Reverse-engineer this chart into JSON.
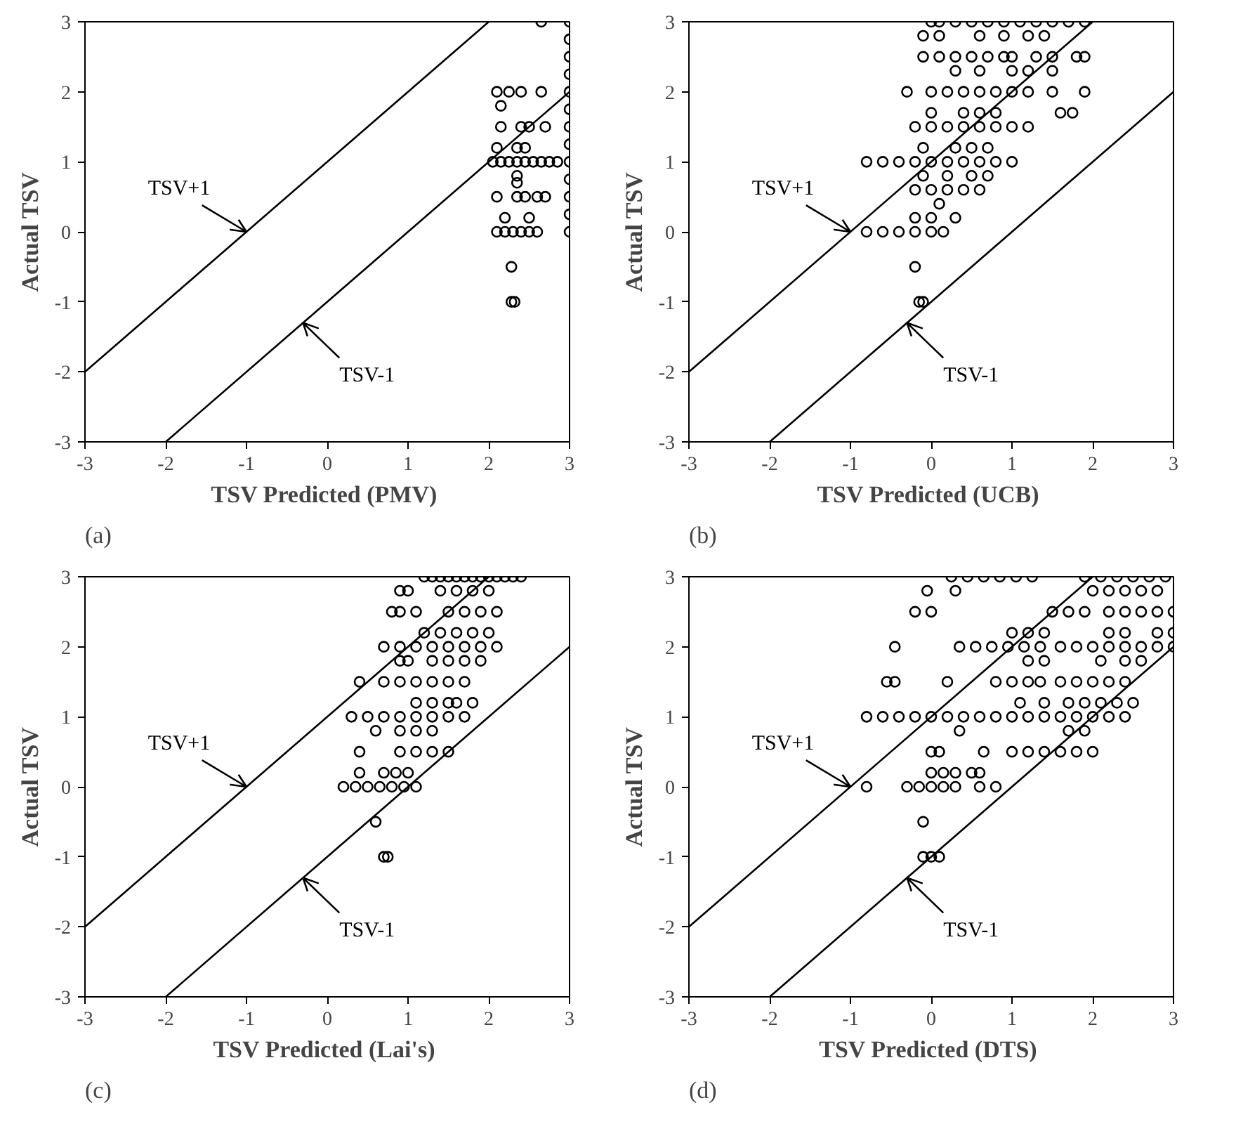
{
  "chart_data": [
    {
      "type": "scatter",
      "xlabel": "TSV  Predicted (PMV)",
      "ylabel": "Actual TSV",
      "xlim": [
        -3,
        3
      ],
      "ylim": [
        -3,
        3
      ],
      "xticks": [
        -3,
        -2,
        -1,
        0,
        1,
        2,
        3
      ],
      "yticks": [
        -3,
        -2,
        -1,
        0,
        1,
        2,
        3
      ],
      "grid": false,
      "annotations": [
        "(a)"
      ],
      "series": [
        {
          "marker": "circle",
          "color": "#000000",
          "x": [
            3.0,
            2.65,
            3,
            3,
            3,
            3,
            3,
            3,
            3,
            3,
            3,
            3,
            3,
            3,
            2.1,
            2.25,
            2.4,
            2.65,
            2.15,
            2.15,
            2.4,
            2.5,
            2.7,
            2.1,
            2.35,
            2.45,
            2.05,
            2.15,
            2.25,
            2.35,
            2.45,
            2.55,
            2.65,
            2.75,
            2.85,
            2.35,
            2.35,
            2.1,
            2.35,
            2.45,
            2.6,
            2.7,
            2.2,
            2.5,
            2.1,
            2.2,
            2.3,
            2.4,
            2.5,
            2.6,
            2.28,
            2.28,
            2.32
          ],
          "values": [
            3,
            3,
            0,
            0.25,
            0.5,
            0.75,
            1,
            1.25,
            1.5,
            1.75,
            2,
            2.25,
            2.5,
            2.75,
            2,
            2,
            2,
            2,
            1.8,
            1.5,
            1.5,
            1.5,
            1.5,
            1.2,
            1.2,
            1.2,
            1,
            1,
            1,
            1,
            1,
            1,
            1,
            1,
            1,
            0.8,
            0.7,
            0.5,
            0.5,
            0.5,
            0.5,
            0.5,
            0.2,
            0.2,
            0,
            0,
            0,
            0,
            0,
            0,
            -0.5,
            -1,
            -1
          ]
        },
        {
          "type": "line",
          "name": "TSV+1",
          "color": "#000000",
          "x": [
            -3,
            2
          ],
          "values": [
            -2,
            3
          ]
        },
        {
          "type": "line",
          "name": "TSV-1",
          "color": "#000000",
          "x": [
            -2,
            3
          ],
          "values": [
            -3,
            2
          ]
        }
      ]
    },
    {
      "type": "scatter",
      "xlabel": "TSV  Predicted (UCB)",
      "ylabel": "Actual TSV",
      "xlim": [
        -3,
        3
      ],
      "ylim": [
        -3,
        3
      ],
      "xticks": [
        -3,
        -2,
        -1,
        0,
        1,
        2,
        3
      ],
      "yticks": [
        -3,
        -2,
        -1,
        0,
        1,
        2,
        3
      ],
      "grid": false,
      "annotations": [
        "(b)"
      ],
      "series": [
        {
          "marker": "circle",
          "color": "#000000",
          "x": [
            0.0,
            0.1,
            0.3,
            0.5,
            0.7,
            0.9,
            1.1,
            1.3,
            1.5,
            1.7,
            1.9,
            -0.1,
            0.1,
            0.6,
            0.9,
            1.2,
            1.4,
            -0.1,
            0.1,
            0.3,
            0.5,
            0.7,
            0.9,
            1.0,
            1.3,
            1.5,
            1.8,
            1.9,
            0.3,
            0.6,
            1.0,
            1.2,
            1.5,
            -0.3,
            0.0,
            0.2,
            0.4,
            0.6,
            0.8,
            1.0,
            1.2,
            1.5,
            1.9,
            0.0,
            0.4,
            0.6,
            0.8,
            1.6,
            1.75,
            -0.2,
            0.0,
            0.2,
            0.4,
            0.6,
            0.8,
            1.0,
            1.2,
            -0.1,
            0.3,
            0.5,
            0.7,
            -0.8,
            -0.6,
            -0.4,
            -0.2,
            0.0,
            0.2,
            0.4,
            0.6,
            0.8,
            1.0,
            -0.1,
            0.2,
            0.5,
            0.7,
            -0.2,
            0.0,
            0.2,
            0.4,
            0.6,
            0.1,
            -0.2,
            0.0,
            0.3,
            -0.8,
            -0.6,
            -0.4,
            -0.2,
            0.0,
            0.15,
            -0.2,
            -0.15,
            -0.1
          ],
          "values": [
            3,
            3,
            3,
            3,
            3,
            3,
            3,
            3,
            3,
            3,
            3,
            2.8,
            2.8,
            2.8,
            2.8,
            2.8,
            2.8,
            2.5,
            2.5,
            2.5,
            2.5,
            2.5,
            2.5,
            2.5,
            2.5,
            2.5,
            2.5,
            2.5,
            2.3,
            2.3,
            2.3,
            2.3,
            2.3,
            2,
            2,
            2,
            2,
            2,
            2,
            2,
            2,
            2,
            2,
            1.7,
            1.7,
            1.7,
            1.7,
            1.7,
            1.7,
            1.5,
            1.5,
            1.5,
            1.5,
            1.5,
            1.5,
            1.5,
            1.5,
            1.2,
            1.2,
            1.2,
            1.2,
            1,
            1,
            1,
            1,
            1,
            1,
            1,
            1,
            1,
            1,
            0.8,
            0.8,
            0.8,
            0.8,
            0.6,
            0.6,
            0.6,
            0.6,
            0.6,
            0.4,
            0.2,
            0.2,
            0.2,
            0,
            0,
            0,
            0,
            0,
            0,
            -0.5,
            -1,
            -1
          ]
        },
        {
          "type": "line",
          "name": "TSV+1",
          "color": "#000000",
          "x": [
            -3,
            2
          ],
          "values": [
            -2,
            3
          ]
        },
        {
          "type": "line",
          "name": "TSV-1",
          "color": "#000000",
          "x": [
            -2,
            3
          ],
          "values": [
            -3,
            2
          ]
        }
      ]
    },
    {
      "type": "scatter",
      "xlabel": "TSV  Predicted (Lai's)",
      "ylabel": "Actual TSV",
      "xlim": [
        -3,
        3
      ],
      "ylim": [
        -3,
        3
      ],
      "xticks": [
        -3,
        -2,
        -1,
        0,
        1,
        2,
        3
      ],
      "yticks": [
        -3,
        -2,
        -1,
        0,
        1,
        2,
        3
      ],
      "grid": false,
      "annotations": [
        "(c)"
      ],
      "series": [
        {
          "marker": "circle",
          "color": "#000000",
          "x": [
            1.2,
            1.3,
            1.4,
            1.5,
            1.6,
            1.7,
            1.8,
            1.9,
            2.0,
            2.1,
            2.2,
            2.3,
            2.4,
            0.9,
            1.0,
            1.4,
            1.6,
            1.8,
            2.0,
            0.8,
            0.9,
            1.1,
            1.5,
            1.7,
            1.9,
            2.1,
            1.2,
            1.4,
            1.6,
            1.8,
            2.0,
            0.7,
            0.9,
            1.1,
            1.3,
            1.5,
            1.7,
            1.9,
            2.1,
            0.9,
            1.0,
            1.3,
            1.5,
            1.7,
            1.9,
            0.4,
            0.7,
            0.9,
            1.1,
            1.3,
            1.5,
            1.7,
            1.1,
            1.3,
            1.5,
            1.6,
            1.8,
            0.3,
            0.5,
            0.7,
            0.9,
            1.1,
            1.3,
            1.5,
            1.7,
            0.6,
            0.9,
            1.1,
            1.3,
            0.4,
            0.9,
            1.1,
            1.3,
            1.5,
            0.4,
            0.7,
            0.85,
            1.0,
            0.2,
            0.35,
            0.5,
            0.65,
            0.8,
            0.95,
            1.1,
            0.6,
            0.7,
            0.75
          ],
          "values": [
            3,
            3,
            3,
            3,
            3,
            3,
            3,
            3,
            3,
            3,
            3,
            3,
            3,
            2.8,
            2.8,
            2.8,
            2.8,
            2.8,
            2.8,
            2.5,
            2.5,
            2.5,
            2.5,
            2.5,
            2.5,
            2.5,
            2.2,
            2.2,
            2.2,
            2.2,
            2.2,
            2,
            2,
            2,
            2,
            2,
            2,
            2,
            2,
            1.8,
            1.8,
            1.8,
            1.8,
            1.8,
            1.8,
            1.5,
            1.5,
            1.5,
            1.5,
            1.5,
            1.5,
            1.5,
            1.2,
            1.2,
            1.2,
            1.2,
            1.2,
            1,
            1,
            1,
            1,
            1,
            1,
            1,
            1,
            0.8,
            0.8,
            0.8,
            0.8,
            0.5,
            0.5,
            0.5,
            0.5,
            0.5,
            0.2,
            0.2,
            0.2,
            0.2,
            0,
            0,
            0,
            0,
            0,
            0,
            0,
            -0.5,
            -1,
            -1
          ]
        },
        {
          "type": "line",
          "name": "TSV+1",
          "color": "#000000",
          "x": [
            -3,
            2
          ],
          "values": [
            -2,
            3
          ]
        },
        {
          "type": "line",
          "name": "TSV-1",
          "color": "#000000",
          "x": [
            -2,
            3
          ],
          "values": [
            -3,
            2
          ]
        }
      ]
    },
    {
      "type": "scatter",
      "xlabel": "TSV  Predicted (DTS)",
      "ylabel": "Actual TSV",
      "xlim": [
        -3,
        3
      ],
      "ylim": [
        -3,
        3
      ],
      "xticks": [
        -3,
        -2,
        -1,
        0,
        1,
        2,
        3
      ],
      "yticks": [
        -3,
        -2,
        -1,
        0,
        1,
        2,
        3
      ],
      "grid": false,
      "annotations": [
        "(d)"
      ],
      "series": [
        {
          "marker": "circle",
          "color": "#000000",
          "x": [
            0.25,
            0.45,
            0.65,
            0.85,
            1.05,
            1.25,
            1.9,
            2.1,
            2.3,
            2.5,
            2.7,
            2.9,
            -0.05,
            0.3,
            2.0,
            2.2,
            2.4,
            2.6,
            2.8,
            -0.2,
            0.0,
            1.5,
            1.7,
            1.9,
            2.2,
            2.4,
            2.6,
            2.8,
            3.0,
            1.0,
            1.2,
            1.4,
            2.2,
            2.4,
            2.8,
            3.0,
            -0.45,
            0.35,
            0.55,
            0.75,
            0.95,
            1.15,
            1.35,
            1.6,
            1.8,
            2.0,
            2.2,
            2.4,
            2.6,
            2.8,
            3.0,
            1.2,
            1.4,
            2.1,
            2.4,
            2.6,
            -0.55,
            -0.45,
            0.2,
            0.8,
            1.0,
            1.2,
            1.35,
            1.6,
            1.8,
            2.0,
            2.2,
            2.4,
            1.1,
            1.4,
            1.7,
            1.9,
            2.1,
            2.3,
            2.5,
            -0.8,
            -0.6,
            -0.4,
            -0.2,
            0.0,
            0.2,
            0.4,
            0.6,
            0.8,
            1.0,
            1.2,
            1.4,
            1.6,
            1.8,
            2.0,
            2.2,
            2.4,
            0.35,
            1.7,
            1.9,
            0.0,
            0.1,
            0.65,
            1.0,
            1.2,
            1.4,
            1.6,
            1.8,
            2.0,
            0.0,
            0.15,
            0.3,
            0.5,
            0.6,
            -0.8,
            -0.3,
            -0.15,
            0.0,
            0.15,
            0.3,
            0.6,
            0.8,
            -0.1,
            -0.1,
            0.0,
            0.1
          ],
          "values": [
            3,
            3,
            3,
            3,
            3,
            3,
            3,
            3,
            3,
            3,
            3,
            3,
            2.8,
            2.8,
            2.8,
            2.8,
            2.8,
            2.8,
            2.8,
            2.5,
            2.5,
            2.5,
            2.5,
            2.5,
            2.5,
            2.5,
            2.5,
            2.5,
            2.5,
            2.2,
            2.2,
            2.2,
            2.2,
            2.2,
            2.2,
            2.2,
            2,
            2,
            2,
            2,
            2,
            2,
            2,
            2,
            2,
            2,
            2,
            2,
            2,
            2,
            2,
            1.8,
            1.8,
            1.8,
            1.8,
            1.8,
            1.5,
            1.5,
            1.5,
            1.5,
            1.5,
            1.5,
            1.5,
            1.5,
            1.5,
            1.5,
            1.5,
            1.5,
            1.2,
            1.2,
            1.2,
            1.2,
            1.2,
            1.2,
            1.2,
            1,
            1,
            1,
            1,
            1,
            1,
            1,
            1,
            1,
            1,
            1,
            1,
            1,
            1,
            1,
            1,
            1,
            0.8,
            0.8,
            0.8,
            0.5,
            0.5,
            0.5,
            0.5,
            0.5,
            0.5,
            0.5,
            0.5,
            0.5,
            0.2,
            0.2,
            0.2,
            0.2,
            0.2,
            0,
            0,
            0,
            0,
            0,
            0,
            0,
            0,
            -0.5,
            -1,
            -1,
            -1
          ]
        },
        {
          "type": "line",
          "name": "TSV+1",
          "color": "#000000",
          "x": [
            -3,
            2
          ],
          "values": [
            -2,
            3
          ]
        },
        {
          "type": "line",
          "name": "TSV-1",
          "color": "#000000",
          "x": [
            -2,
            3
          ],
          "values": [
            -3,
            2
          ]
        }
      ]
    }
  ]
}
